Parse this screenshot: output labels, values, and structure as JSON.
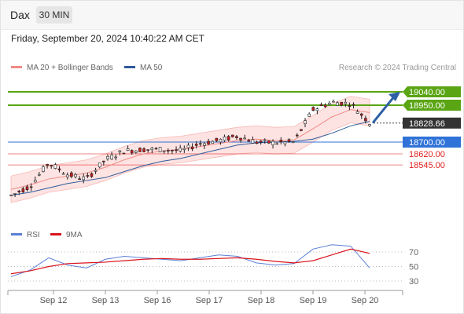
{
  "header": {
    "symbol": "Dax",
    "timeframe": "30 MIN"
  },
  "timestamp": "Friday, September 20, 2024 10:40:22 AM CET",
  "legend": {
    "ma20": "MA 20 + Bollinger Bands",
    "ma50": "MA 50",
    "rsi": "RSI",
    "rsi_ma": "9MA",
    "ma20_color": "#f08a86",
    "ma50_color": "#2e5b9a",
    "rsi_color": "#5b7fd6",
    "rsi_ma_color": "#d9141c"
  },
  "source": "Research © 2024 Trading Central",
  "levels": [
    {
      "value": "19040.00",
      "price": 19040,
      "style": "green-box",
      "color": "#5aa514"
    },
    {
      "value": "18950.00",
      "price": 18950,
      "style": "green-box",
      "color": "#5aa514"
    },
    {
      "value": "18828.66",
      "price": 18828.66,
      "style": "dark-box",
      "color": "#333333"
    },
    {
      "value": "18700.00",
      "price": 18700,
      "style": "blue-box",
      "color": "#2f72d8"
    },
    {
      "value": "18620.00",
      "price": 18620,
      "style": "red-text",
      "color": "#e02020"
    },
    {
      "value": "18545.00",
      "price": 18545,
      "style": "red-text",
      "color": "#e02020"
    }
  ],
  "rsi_ticks": [
    "70",
    "50",
    "30"
  ],
  "x_labels": [
    "Sep 12",
    "Sep 13",
    "Sep 16",
    "Sep 17",
    "Sep 18",
    "Sep 19",
    "Sep 20"
  ],
  "chart_data": {
    "type": "line",
    "title": "",
    "xlabel": "",
    "ylabel": "",
    "price_series": [
      {
        "name": "Price",
        "x": [
          "Sep 12",
          "Sep 12",
          "Sep 12",
          "Sep 13",
          "Sep 13",
          "Sep 13",
          "Sep 16",
          "Sep 16",
          "Sep 16",
          "Sep 17",
          "Sep 17",
          "Sep 17",
          "Sep 18",
          "Sep 18",
          "Sep 18",
          "Sep 19",
          "Sep 19",
          "Sep 19",
          "Sep 20",
          "Sep 20"
        ],
        "values": [
          18340,
          18400,
          18560,
          18480,
          18450,
          18580,
          18640,
          18650,
          18650,
          18640,
          18690,
          18710,
          18740,
          18700,
          18695,
          18700,
          18920,
          18970,
          18960,
          18830
        ]
      }
    ],
    "ma20_values": [
      18380,
      18410,
      18450,
      18470,
      18490,
      18530,
      18580,
      18620,
      18640,
      18650,
      18670,
      18690,
      18710,
      18720,
      18710,
      18715,
      18790,
      18870,
      18920,
      18900
    ],
    "ma50_values": [
      18340,
      18360,
      18390,
      18420,
      18440,
      18460,
      18500,
      18540,
      18570,
      18590,
      18620,
      18650,
      18680,
      18695,
      18700,
      18705,
      18720,
      18760,
      18810,
      18840
    ],
    "rsi_values": [
      36,
      45,
      62,
      52,
      48,
      60,
      64,
      62,
      60,
      58,
      62,
      66,
      64,
      55,
      52,
      54,
      74,
      80,
      78,
      48
    ],
    "rsi_ma_values": [
      40,
      44,
      50,
      54,
      55,
      56,
      58,
      60,
      61,
      60,
      60,
      61,
      62,
      60,
      57,
      55,
      58,
      66,
      74,
      68
    ],
    "forecast": {
      "from": 18830,
      "to": 19040
    },
    "rsi_ylim": [
      20,
      80
    ]
  }
}
